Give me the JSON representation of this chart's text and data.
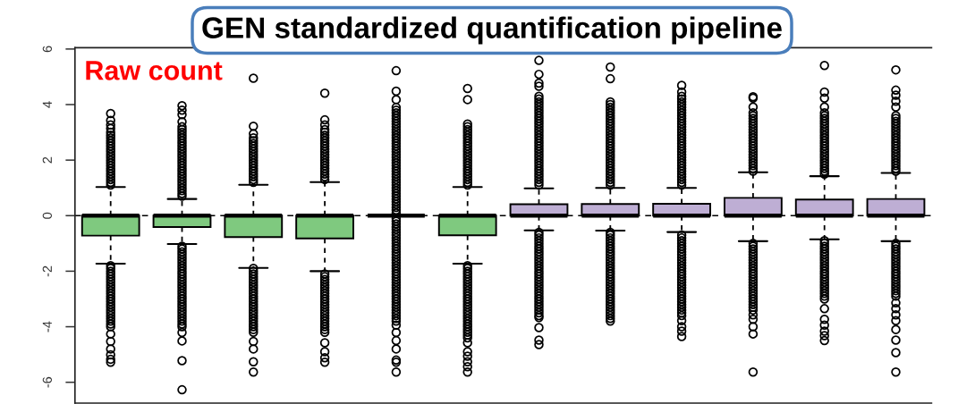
{
  "chart_data": {
    "type": "box",
    "title": "GEN standardized quantification pipeline",
    "annotations": [
      "Raw count"
    ],
    "categories": [
      null,
      null,
      null,
      null,
      null,
      null,
      null,
      null,
      null,
      null,
      null,
      null
    ],
    "colors": [
      "#7fc97f",
      "#7fc97f",
      "#7fc97f",
      "#7fc97f",
      "#000000",
      "#7fc97f",
      "#beaed4",
      "#beaed4",
      "#beaed4",
      "#beaed4",
      "#beaed4",
      "#beaed4"
    ],
    "boxes": [
      {
        "low": -1.73,
        "q1": -0.72,
        "median": 0,
        "q3": 0,
        "high": 1.03,
        "outliers": [
          1.1,
          1.2,
          1.3,
          1.4,
          1.5,
          1.6,
          1.7,
          1.8,
          1.9,
          2.0,
          2.1,
          2.2,
          2.3,
          2.4,
          2.5,
          2.6,
          2.7,
          2.8,
          2.9,
          3.0,
          3.14,
          3.27,
          3.43,
          3.68,
          -1.8,
          -1.9,
          -2.0,
          -2.1,
          -2.2,
          -2.3,
          -2.4,
          -2.5,
          -2.6,
          -2.7,
          -2.8,
          -2.9,
          -3.0,
          -3.1,
          -3.2,
          -3.3,
          -3.4,
          -3.5,
          -3.6,
          -3.7,
          -3.8,
          -3.9,
          -4.0,
          -4.26,
          -4.53,
          -4.8,
          -5.01,
          -5.17,
          -5.28
        ]
      },
      {
        "low": -1.02,
        "q1": -0.41,
        "median": 0,
        "q3": 0,
        "high": 0.6,
        "outliers": [
          0.7,
          0.8,
          0.9,
          1.0,
          1.1,
          1.2,
          1.3,
          1.4,
          1.5,
          1.6,
          1.7,
          1.8,
          1.9,
          2.0,
          2.1,
          2.2,
          2.3,
          2.4,
          2.5,
          2.6,
          2.7,
          2.8,
          2.9,
          3.0,
          3.1,
          3.2,
          3.38,
          3.64,
          3.8,
          3.96,
          -1.1,
          -1.2,
          -1.3,
          -1.4,
          -1.5,
          -1.6,
          -1.7,
          -1.8,
          -1.9,
          -2.0,
          -2.1,
          -2.2,
          -2.3,
          -2.4,
          -2.5,
          -2.6,
          -2.7,
          -2.8,
          -2.9,
          -3.0,
          -3.1,
          -3.2,
          -3.3,
          -3.4,
          -3.5,
          -3.6,
          -3.7,
          -3.8,
          -3.9,
          -4.0,
          -4.21,
          -4.51,
          -5.22,
          -6.27
        ]
      },
      {
        "low": -1.88,
        "q1": -0.77,
        "median": 0,
        "q3": 0,
        "high": 1.11,
        "outliers": [
          1.2,
          1.3,
          1.4,
          1.5,
          1.6,
          1.7,
          1.8,
          1.9,
          2.0,
          2.1,
          2.2,
          2.3,
          2.4,
          2.5,
          2.6,
          2.7,
          2.8,
          2.95,
          3.22,
          4.95,
          -1.9,
          -2.0,
          -2.1,
          -2.2,
          -2.3,
          -2.4,
          -2.5,
          -2.6,
          -2.7,
          -2.8,
          -2.9,
          -3.0,
          -3.1,
          -3.2,
          -3.3,
          -3.4,
          -3.5,
          -3.6,
          -3.7,
          -3.8,
          -3.9,
          -4.0,
          -4.1,
          -4.2,
          -4.53,
          -4.8,
          -5.26,
          -5.63
        ]
      },
      {
        "low": -2.0,
        "q1": -0.82,
        "median": 0,
        "q3": 0,
        "high": 1.21,
        "outliers": [
          1.3,
          1.4,
          1.5,
          1.6,
          1.7,
          1.8,
          1.9,
          2.0,
          2.1,
          2.2,
          2.3,
          2.4,
          2.5,
          2.6,
          2.7,
          2.8,
          2.9,
          3.0,
          3.1,
          3.27,
          3.45,
          4.41,
          -2.1,
          -2.2,
          -2.3,
          -2.4,
          -2.5,
          -2.6,
          -2.7,
          -2.8,
          -2.9,
          -3.0,
          -3.1,
          -3.2,
          -3.3,
          -3.4,
          -3.5,
          -3.6,
          -3.7,
          -3.8,
          -3.9,
          -4.0,
          -4.1,
          -4.2,
          -4.58,
          -4.9,
          -5.12,
          -5.28
        ]
      },
      {
        "low": 0,
        "q1": 0,
        "median": 0,
        "q3": 0,
        "high": 0,
        "outliers": [
          0.1,
          0.2,
          0.3,
          0.4,
          0.5,
          0.6,
          0.7,
          0.8,
          0.9,
          1.0,
          1.1,
          1.2,
          1.3,
          1.4,
          1.5,
          1.6,
          1.7,
          1.8,
          1.9,
          2.0,
          2.1,
          2.2,
          2.3,
          2.4,
          2.5,
          2.6,
          2.7,
          2.8,
          2.9,
          3.0,
          3.1,
          3.2,
          3.3,
          3.4,
          3.5,
          3.6,
          3.7,
          3.8,
          3.9,
          4.18,
          4.48,
          5.22,
          -0.1,
          -0.2,
          -0.3,
          -0.4,
          -0.5,
          -0.6,
          -0.7,
          -0.8,
          -0.9,
          -1.0,
          -1.1,
          -1.2,
          -1.3,
          -1.4,
          -1.5,
          -1.6,
          -1.7,
          -1.8,
          -1.9,
          -2.0,
          -2.1,
          -2.2,
          -2.3,
          -2.4,
          -2.5,
          -2.6,
          -2.7,
          -2.8,
          -2.9,
          -3.0,
          -3.1,
          -3.2,
          -3.3,
          -3.4,
          -3.5,
          -3.6,
          -3.7,
          -3.8,
          -3.94,
          -4.21,
          -4.5,
          -4.8,
          -5.2,
          -5.28,
          -5.63
        ]
      },
      {
        "low": -1.73,
        "q1": -0.71,
        "median": 0,
        "q3": 0,
        "high": 1.03,
        "outliers": [
          1.1,
          1.2,
          1.3,
          1.4,
          1.5,
          1.6,
          1.7,
          1.8,
          1.9,
          2.0,
          2.1,
          2.2,
          2.3,
          2.4,
          2.5,
          2.6,
          2.7,
          2.8,
          2.9,
          3.0,
          3.1,
          3.2,
          3.3,
          4.18,
          4.58,
          -1.8,
          -1.9,
          -2.0,
          -2.1,
          -2.2,
          -2.3,
          -2.4,
          -2.5,
          -2.6,
          -2.7,
          -2.8,
          -2.9,
          -3.0,
          -3.1,
          -3.2,
          -3.3,
          -3.4,
          -3.5,
          -3.6,
          -3.7,
          -3.8,
          -3.9,
          -4.0,
          -4.1,
          -4.2,
          -4.3,
          -4.4,
          -4.58,
          -4.9,
          -5.06,
          -5.26,
          -5.44,
          -5.63
        ]
      },
      {
        "low": -0.53,
        "q1": 0,
        "median": 0,
        "q3": 0.41,
        "high": 0.98,
        "outliers": [
          1.1,
          1.2,
          1.3,
          1.4,
          1.5,
          1.6,
          1.7,
          1.8,
          1.9,
          2.0,
          2.1,
          2.2,
          2.3,
          2.4,
          2.5,
          2.6,
          2.7,
          2.8,
          2.9,
          3.0,
          3.1,
          3.2,
          3.3,
          3.4,
          3.5,
          3.6,
          3.7,
          3.8,
          3.9,
          4.0,
          4.1,
          4.2,
          4.3,
          4.66,
          4.77,
          5.09,
          5.59,
          -0.6,
          -0.7,
          -0.8,
          -0.9,
          -1.0,
          -1.1,
          -1.2,
          -1.3,
          -1.4,
          -1.5,
          -1.6,
          -1.7,
          -1.8,
          -1.9,
          -2.0,
          -2.1,
          -2.2,
          -2.3,
          -2.4,
          -2.5,
          -2.6,
          -2.7,
          -2.8,
          -2.9,
          -3.0,
          -3.1,
          -3.2,
          -3.3,
          -3.4,
          -3.5,
          -3.6,
          -3.67,
          -4.03,
          -4.48,
          -4.64
        ]
      },
      {
        "low": -0.54,
        "q1": 0,
        "median": 0,
        "q3": 0.42,
        "high": 1.0,
        "outliers": [
          1.1,
          1.2,
          1.3,
          1.4,
          1.5,
          1.6,
          1.7,
          1.8,
          1.9,
          2.0,
          2.1,
          2.2,
          2.3,
          2.4,
          2.5,
          2.6,
          2.7,
          2.8,
          2.9,
          3.0,
          3.1,
          3.2,
          3.3,
          3.4,
          3.5,
          3.6,
          3.7,
          3.8,
          3.9,
          4.0,
          4.1,
          4.93,
          5.35,
          -0.6,
          -0.7,
          -0.8,
          -0.9,
          -1.0,
          -1.1,
          -1.2,
          -1.3,
          -1.4,
          -1.5,
          -1.6,
          -1.7,
          -1.8,
          -1.9,
          -2.0,
          -2.1,
          -2.2,
          -2.3,
          -2.4,
          -2.5,
          -2.6,
          -2.7,
          -2.8,
          -2.9,
          -3.0,
          -3.1,
          -3.2,
          -3.3,
          -3.4,
          -3.5,
          -3.6,
          -3.7,
          -3.8
        ]
      },
      {
        "low": -0.59,
        "q1": 0,
        "median": 0,
        "q3": 0.43,
        "high": 1.0,
        "outliers": [
          1.1,
          1.2,
          1.3,
          1.4,
          1.5,
          1.6,
          1.7,
          1.8,
          1.9,
          2.0,
          2.1,
          2.2,
          2.3,
          2.4,
          2.5,
          2.6,
          2.7,
          2.8,
          2.9,
          3.0,
          3.1,
          3.2,
          3.3,
          3.4,
          3.5,
          3.6,
          3.7,
          3.8,
          3.9,
          4.0,
          4.1,
          4.2,
          4.3,
          4.45,
          4.69,
          -0.7,
          -0.8,
          -0.9,
          -1.0,
          -1.1,
          -1.2,
          -1.3,
          -1.4,
          -1.5,
          -1.6,
          -1.7,
          -1.8,
          -1.9,
          -2.0,
          -2.1,
          -2.2,
          -2.3,
          -2.4,
          -2.5,
          -2.6,
          -2.7,
          -2.8,
          -2.9,
          -3.0,
          -3.1,
          -3.2,
          -3.3,
          -3.4,
          -3.5,
          -3.6,
          -3.78,
          -4.0,
          -4.16,
          -4.35
        ]
      },
      {
        "low": -0.92,
        "q1": 0,
        "median": 0,
        "q3": 0.64,
        "high": 1.56,
        "outliers": [
          1.6,
          1.7,
          1.8,
          1.9,
          2.0,
          2.1,
          2.2,
          2.3,
          2.4,
          2.5,
          2.6,
          2.7,
          2.8,
          2.9,
          3.0,
          3.1,
          3.2,
          3.3,
          3.4,
          3.5,
          3.6,
          3.7,
          3.91,
          4.23,
          4.28,
          -1.0,
          -1.1,
          -1.2,
          -1.3,
          -1.4,
          -1.5,
          -1.6,
          -1.7,
          -1.8,
          -1.9,
          -2.0,
          -2.1,
          -2.2,
          -2.3,
          -2.4,
          -2.5,
          -2.6,
          -2.7,
          -2.8,
          -2.9,
          -3.0,
          -3.1,
          -3.2,
          -3.3,
          -3.4,
          -3.57,
          -3.73,
          -4.0,
          -4.26,
          -5.63
        ]
      },
      {
        "low": -0.85,
        "q1": 0,
        "median": 0,
        "q3": 0.58,
        "high": 1.42,
        "outliers": [
          1.5,
          1.6,
          1.7,
          1.8,
          1.9,
          2.0,
          2.1,
          2.2,
          2.3,
          2.4,
          2.5,
          2.6,
          2.7,
          2.8,
          2.9,
          3.0,
          3.1,
          3.2,
          3.3,
          3.4,
          3.5,
          3.6,
          3.7,
          3.91,
          4.23,
          4.45,
          5.41,
          -0.9,
          -1.0,
          -1.1,
          -1.2,
          -1.3,
          -1.4,
          -1.5,
          -1.6,
          -1.7,
          -1.8,
          -1.9,
          -2.0,
          -2.1,
          -2.2,
          -2.3,
          -2.4,
          -2.5,
          -2.6,
          -2.7,
          -2.8,
          -2.9,
          -3.0,
          -3.35,
          -3.73,
          -3.94,
          -4.16,
          -4.32,
          -4.5
        ]
      },
      {
        "low": -0.92,
        "q1": 0,
        "median": 0,
        "q3": 0.6,
        "high": 1.54,
        "outliers": [
          1.6,
          1.7,
          1.8,
          1.9,
          2.0,
          2.1,
          2.2,
          2.3,
          2.4,
          2.5,
          2.6,
          2.7,
          2.8,
          2.9,
          3.0,
          3.1,
          3.2,
          3.3,
          3.4,
          3.5,
          3.6,
          3.91,
          4.12,
          4.34,
          4.52,
          5.25,
          -1.0,
          -1.1,
          -1.2,
          -1.3,
          -1.4,
          -1.5,
          -1.6,
          -1.7,
          -1.8,
          -1.9,
          -2.0,
          -2.1,
          -2.2,
          -2.3,
          -2.4,
          -2.5,
          -2.6,
          -2.7,
          -2.8,
          -2.9,
          -3.14,
          -3.35,
          -3.57,
          -3.78,
          -4.1,
          -4.48,
          -4.93,
          -5.63
        ]
      }
    ],
    "ylim": [
      -6.75,
      6.05
    ],
    "yticks": [
      -6,
      -4,
      -2,
      0,
      2,
      4,
      6
    ],
    "tick_labels": "y",
    "marker": "circle",
    "ref_lines": [
      {
        "axis": "y",
        "value": 0,
        "line_style": "dashed",
        "color": "#000000"
      }
    ]
  }
}
